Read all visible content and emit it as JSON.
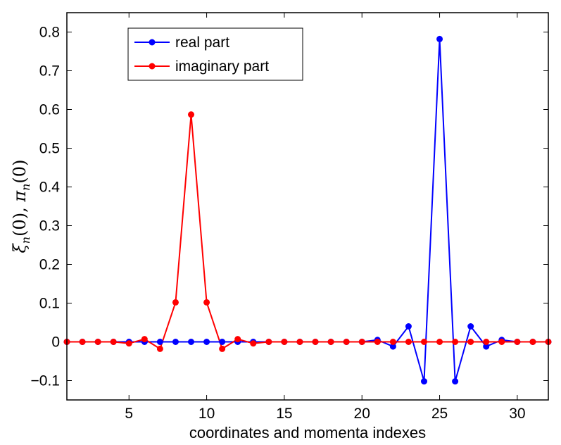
{
  "chart_data": {
    "type": "line",
    "title": "",
    "xlabel": "coordinates and momenta indexes",
    "ylabel": {
      "base1": "ξ",
      "sub1": "n",
      "arg1": "(0), ",
      "base2": "π",
      "sub2": "n",
      "arg2": "(0)"
    },
    "xlim": [
      1,
      32
    ],
    "ylim": [
      -0.15,
      0.85
    ],
    "xticks": [
      5,
      10,
      15,
      20,
      25,
      30
    ],
    "yticks": [
      -0.1,
      0,
      0.1,
      0.2,
      0.3,
      0.4,
      0.5,
      0.6,
      0.7,
      0.8
    ],
    "xtick_labels": [
      "5",
      "10",
      "15",
      "20",
      "25",
      "30"
    ],
    "ytick_labels": [
      "−0.1",
      "0",
      "0.1",
      "0.2",
      "0.3",
      "0.4",
      "0.5",
      "0.6",
      "0.7",
      "0.8"
    ],
    "legend_position": "top-left",
    "x": [
      1,
      2,
      3,
      4,
      5,
      6,
      7,
      8,
      9,
      10,
      11,
      12,
      13,
      14,
      15,
      16,
      17,
      18,
      19,
      20,
      21,
      22,
      23,
      24,
      25,
      26,
      27,
      28,
      29,
      30,
      31,
      32
    ],
    "series": [
      {
        "name": "real part",
        "color": "#0000ff",
        "values": [
          0,
          0,
          0,
          0,
          0,
          0,
          0,
          0,
          0,
          0,
          0,
          0,
          0,
          0,
          0,
          0,
          0,
          0,
          0,
          0,
          0.005,
          -0.012,
          0.04,
          -0.102,
          0.782,
          -0.102,
          0.04,
          -0.012,
          0.005,
          0,
          0,
          0
        ]
      },
      {
        "name": "imaginary part",
        "color": "#ff0000",
        "values": [
          0,
          0,
          0,
          0,
          -0.004,
          0.007,
          -0.018,
          0.102,
          0.587,
          0.102,
          -0.018,
          0.007,
          -0.004,
          0,
          0,
          0,
          0,
          0,
          0,
          0,
          0,
          0,
          0,
          0,
          0,
          0,
          0,
          0,
          0,
          0,
          0,
          0
        ]
      }
    ]
  }
}
